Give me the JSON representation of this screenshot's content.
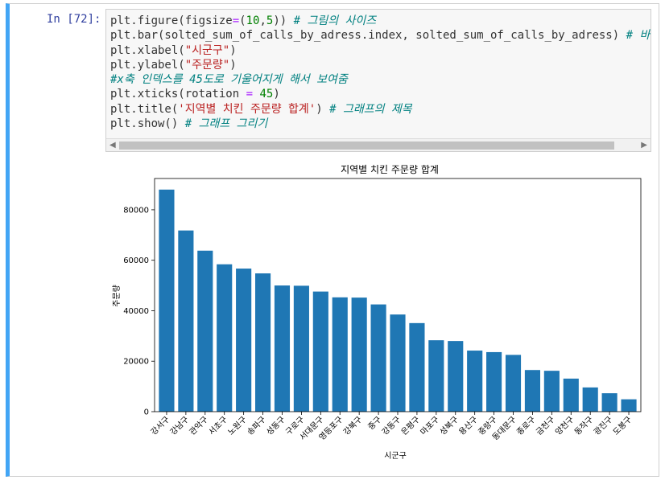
{
  "cell": {
    "prompt": "In [72]:",
    "code_lines": [
      [
        [
          "plt.figure(figsize",
          "kw"
        ],
        [
          "=",
          "op"
        ],
        [
          "(",
          "kw"
        ],
        [
          "10",
          "num"
        ],
        [
          ",",
          "kw"
        ],
        [
          "5",
          "num"
        ],
        [
          ")) ",
          "kw"
        ],
        [
          "# 그림의 사이즈",
          "cm"
        ]
      ],
      [
        [
          "plt.bar(solted_sum_of_calls_by_adress.index, solted_sum_of_calls_by_adress) ",
          "kw"
        ],
        [
          "# 바 그래프",
          "cm"
        ]
      ],
      [
        [
          "plt.xlabel(",
          "kw"
        ],
        [
          "\"시군구\"",
          "str"
        ],
        [
          ")",
          "kw"
        ]
      ],
      [
        [
          "plt.ylabel(",
          "kw"
        ],
        [
          "\"주문량\"",
          "str"
        ],
        [
          ")",
          "kw"
        ]
      ],
      [
        [
          "#x축 인덱스를 45도로 기울어지게 해서 보여줌",
          "cm"
        ]
      ],
      [
        [
          "plt.xticks(rotation ",
          "kw"
        ],
        [
          "=",
          "op"
        ],
        [
          " ",
          "kw"
        ],
        [
          "45",
          "num"
        ],
        [
          ")",
          "kw"
        ]
      ],
      [
        [
          "plt.title(",
          "kw"
        ],
        [
          "'지역별 치킨 주문량 합계'",
          "str"
        ],
        [
          ") ",
          "kw"
        ],
        [
          "# 그래프의 제목",
          "cm"
        ]
      ],
      [
        [
          "plt.show() ",
          "kw"
        ],
        [
          "# 그래프 그리기",
          "cm"
        ]
      ]
    ]
  },
  "chart_data": {
    "type": "bar",
    "title": "지역별 치킨 주문량 합계",
    "xlabel": "시군구",
    "ylabel": "주문량",
    "categories": [
      "강서구",
      "강남구",
      "관악구",
      "서초구",
      "노원구",
      "송파구",
      "성동구",
      "구로구",
      "서대문구",
      "영등포구",
      "강북구",
      "중구",
      "강동구",
      "은평구",
      "마포구",
      "성북구",
      "용산구",
      "중랑구",
      "동대문구",
      "종로구",
      "금천구",
      "양천구",
      "동작구",
      "광진구",
      "도봉구"
    ],
    "values": [
      88000,
      71800,
      63800,
      58400,
      56700,
      54800,
      50000,
      49900,
      47600,
      45300,
      45200,
      42500,
      38500,
      35100,
      28300,
      28000,
      24200,
      23600,
      22500,
      16500,
      16200,
      13100,
      9600,
      7300,
      4900
    ],
    "yticks": [
      0,
      20000,
      40000,
      60000,
      80000
    ],
    "ylim": [
      0,
      92400
    ],
    "color": "#1f77b4"
  }
}
